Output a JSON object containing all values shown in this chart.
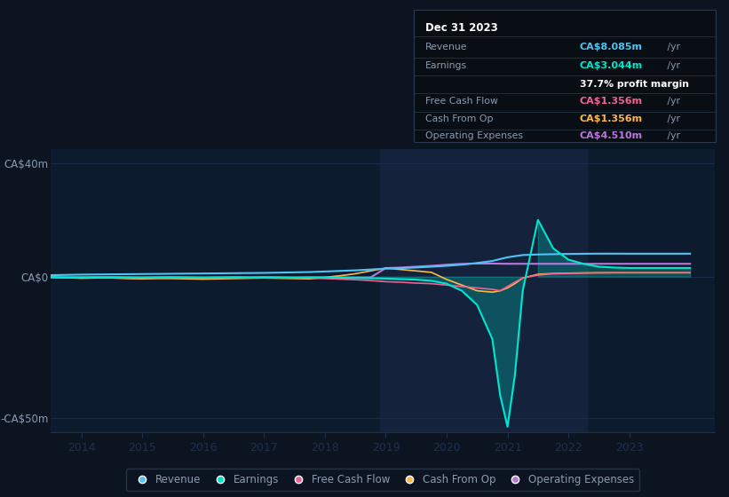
{
  "bg_color": "#0d1421",
  "plot_bg_color": "#0d1b2e",
  "grid_color": "#1e3050",
  "text_color": "#8a9bb0",
  "xlim": [
    2013.5,
    2024.4
  ],
  "ylim": [
    -55,
    45
  ],
  "series_colors": {
    "revenue": "#4fc3f7",
    "earnings": "#00e5cc",
    "free_cash_flow": "#f06292",
    "cash_from_op": "#ffb74d",
    "operating_expenses": "#bb77dd"
  },
  "info_box": {
    "date": "Dec 31 2023",
    "revenue_label": "Revenue",
    "revenue_value": "CA$8.085m",
    "revenue_color": "#4fc3f7",
    "earnings_label": "Earnings",
    "earnings_value": "CA$3.044m",
    "earnings_color": "#00e5cc",
    "profit_margin": "37.7% profit margin",
    "fcf_label": "Free Cash Flow",
    "fcf_value": "CA$1.356m",
    "fcf_color": "#f06292",
    "cfo_label": "Cash From Op",
    "cfo_value": "CA$1.356m",
    "cfo_color": "#ffb74d",
    "opex_label": "Operating Expenses",
    "opex_value": "CA$4.510m",
    "opex_color": "#bb77dd"
  },
  "x": [
    2013.5,
    2013.75,
    2014.0,
    2014.25,
    2014.5,
    2014.75,
    2015.0,
    2015.25,
    2015.5,
    2015.75,
    2016.0,
    2016.25,
    2016.5,
    2016.75,
    2017.0,
    2017.25,
    2017.5,
    2017.75,
    2018.0,
    2018.25,
    2018.5,
    2018.75,
    2019.0,
    2019.25,
    2019.5,
    2019.75,
    2020.0,
    2020.25,
    2020.5,
    2020.75,
    2020.88,
    2021.0,
    2021.12,
    2021.25,
    2021.5,
    2021.75,
    2022.0,
    2022.25,
    2022.5,
    2022.75,
    2023.0,
    2023.25,
    2023.5,
    2023.75,
    2024.0
  ],
  "revenue": [
    0.5,
    0.6,
    0.7,
    0.75,
    0.8,
    0.85,
    0.9,
    0.95,
    1.0,
    1.05,
    1.1,
    1.15,
    1.2,
    1.25,
    1.3,
    1.4,
    1.5,
    1.6,
    1.8,
    2.0,
    2.2,
    2.5,
    2.8,
    3.0,
    3.2,
    3.5,
    3.8,
    4.2,
    4.8,
    5.5,
    6.2,
    6.8,
    7.2,
    7.6,
    7.8,
    7.9,
    8.0,
    8.05,
    8.1,
    8.1,
    8.085,
    8.085,
    8.085,
    8.085,
    8.085
  ],
  "earnings": [
    -0.3,
    -0.3,
    -0.25,
    -0.2,
    -0.2,
    -0.25,
    -0.3,
    -0.25,
    -0.2,
    -0.25,
    -0.3,
    -0.25,
    -0.2,
    -0.25,
    -0.2,
    -0.25,
    -0.3,
    -0.25,
    -0.3,
    -0.4,
    -0.5,
    -0.6,
    -0.7,
    -0.9,
    -1.1,
    -1.5,
    -2.5,
    -5.0,
    -10.0,
    -22.0,
    -42.0,
    -53.0,
    -35.0,
    -5.0,
    20.0,
    10.0,
    6.0,
    4.5,
    3.5,
    3.2,
    3.044,
    3.044,
    3.044,
    3.044,
    3.044
  ],
  "free_cash_flow": [
    -0.2,
    -0.25,
    -0.3,
    -0.3,
    -0.35,
    -0.4,
    -0.4,
    -0.35,
    -0.35,
    -0.4,
    -0.45,
    -0.4,
    -0.4,
    -0.45,
    -0.4,
    -0.45,
    -0.5,
    -0.55,
    -0.7,
    -0.9,
    -1.1,
    -1.4,
    -1.8,
    -2.0,
    -2.3,
    -2.5,
    -3.0,
    -3.5,
    -4.0,
    -4.5,
    -5.0,
    -3.5,
    -2.0,
    -0.5,
    0.5,
    1.0,
    1.1,
    1.2,
    1.3,
    1.35,
    1.356,
    1.356,
    1.356,
    1.356,
    1.356
  ],
  "cash_from_op": [
    -0.1,
    -0.4,
    -0.6,
    -0.5,
    -0.5,
    -0.7,
    -0.8,
    -0.7,
    -0.7,
    -0.8,
    -0.9,
    -0.8,
    -0.7,
    -0.6,
    -0.5,
    -0.6,
    -0.7,
    -0.8,
    -0.3,
    0.3,
    1.0,
    2.0,
    3.0,
    2.5,
    2.0,
    1.5,
    -1.0,
    -3.0,
    -5.0,
    -5.5,
    -5.0,
    -4.0,
    -2.5,
    -0.5,
    0.8,
    1.1,
    1.2,
    1.3,
    1.35,
    1.356,
    1.356,
    1.356,
    1.356,
    1.356,
    1.356
  ],
  "operating_expenses": [
    -0.3,
    -0.35,
    -0.4,
    -0.35,
    -0.3,
    -0.35,
    -0.35,
    -0.3,
    -0.3,
    -0.35,
    -0.4,
    -0.35,
    -0.3,
    -0.35,
    -0.3,
    -0.35,
    -0.4,
    -0.35,
    -0.3,
    -0.3,
    -0.3,
    -0.3,
    3.0,
    3.2,
    3.5,
    3.8,
    4.2,
    4.5,
    4.6,
    4.6,
    4.55,
    4.52,
    4.51,
    4.51,
    4.51,
    4.51,
    4.51,
    4.51,
    4.51,
    4.51,
    4.51,
    4.51,
    4.51,
    4.51,
    4.51
  ]
}
